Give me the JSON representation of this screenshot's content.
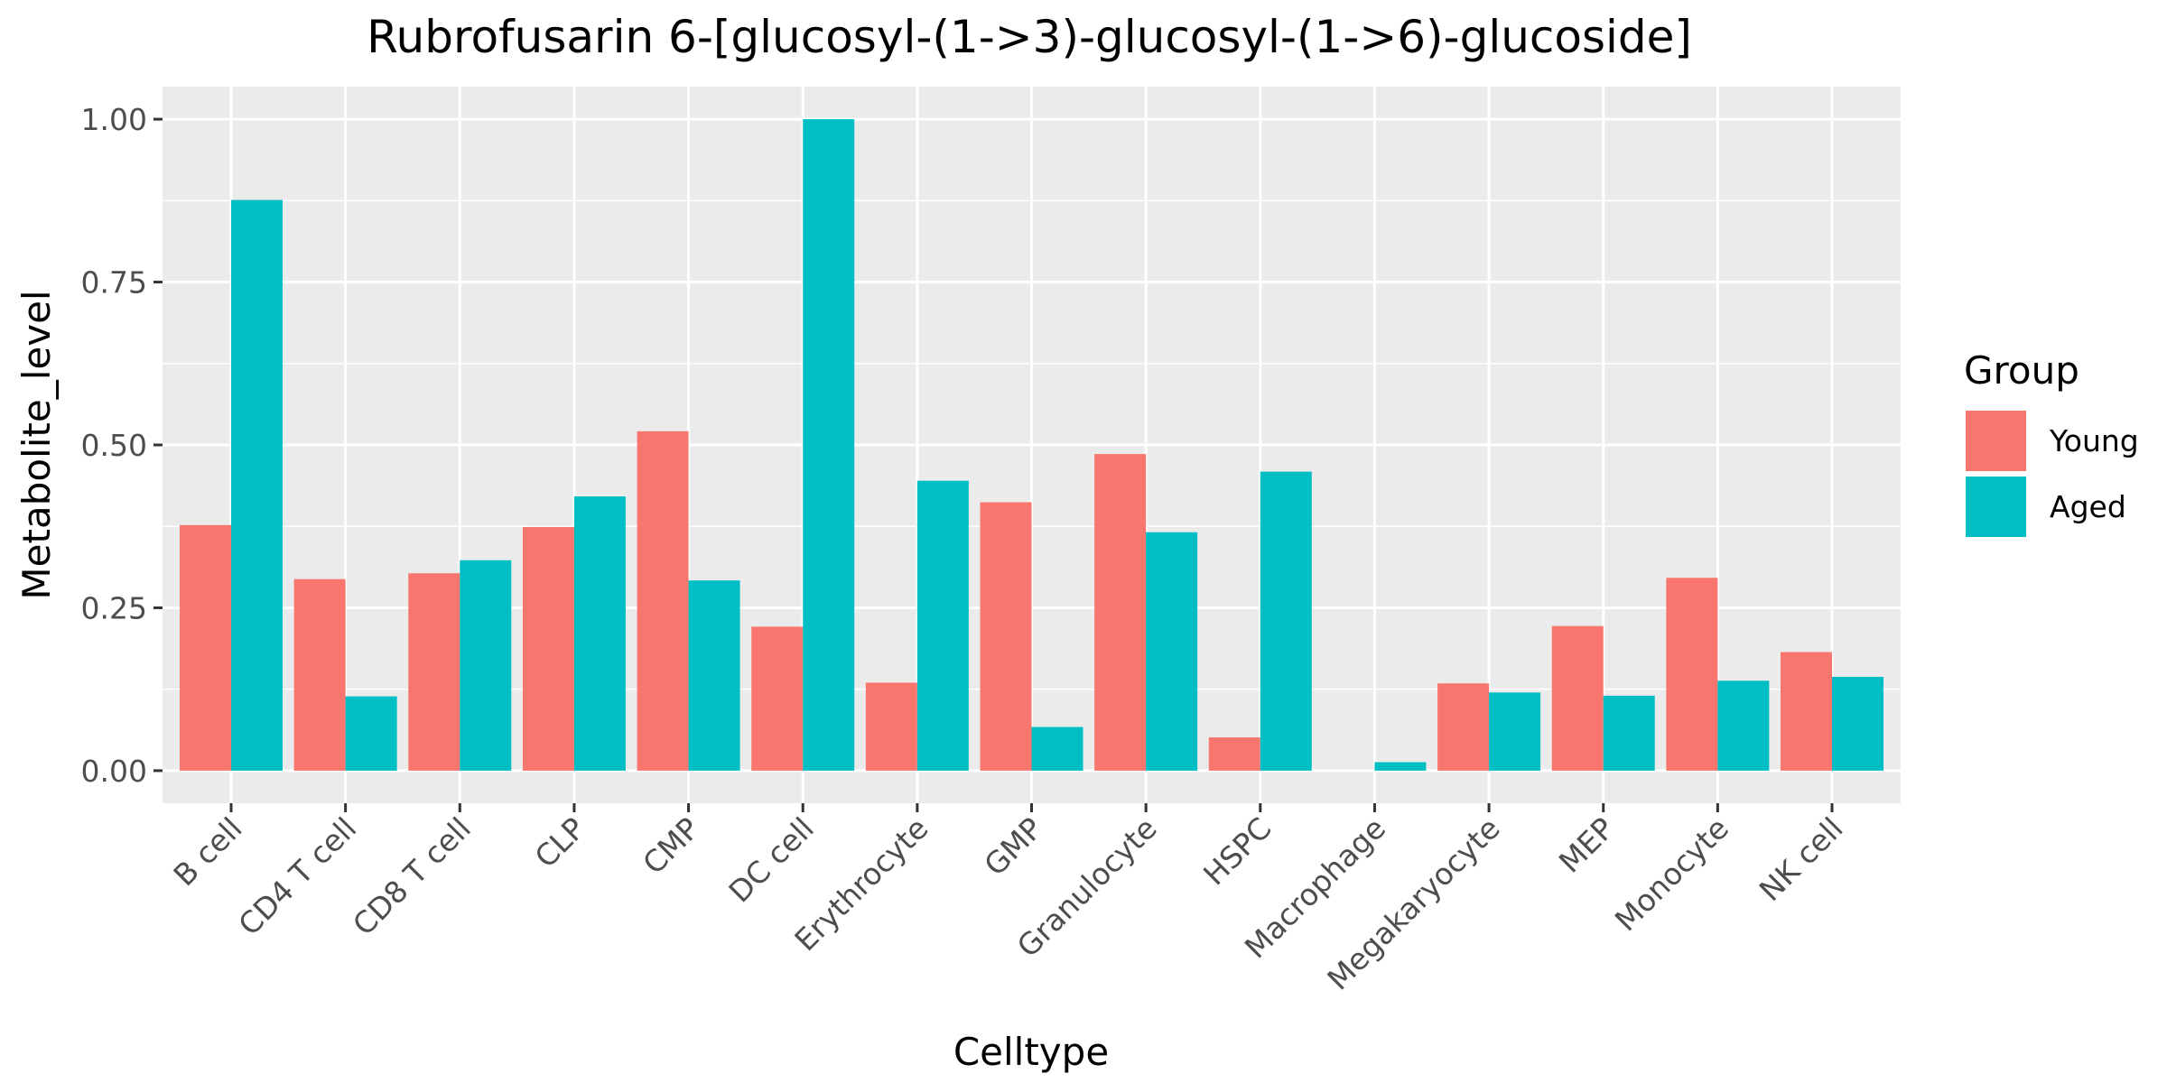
{
  "chart_data": {
    "type": "bar",
    "title": "Rubrofusarin 6-[glucosyl-(1->3)-glucosyl-(1->6)-glucoside]",
    "xlabel": "Celltype",
    "ylabel": "Metabolite_level",
    "ylim": [
      -0.05,
      1.05
    ],
    "yticks": [
      "0.00",
      "0.25",
      "0.50",
      "0.75",
      "1.00"
    ],
    "grid": true,
    "legend_title": "Group",
    "legend_position": "right",
    "categories": [
      "B cell",
      "CD4 T cell",
      "CD8 T cell",
      "CLP",
      "CMP",
      "DC cell",
      "Erythrocyte",
      "GMP",
      "Granulocyte",
      "HSPC",
      "Macrophage",
      "Megakaryocyte",
      "MEP",
      "Monocyte",
      "NK cell"
    ],
    "series": [
      {
        "name": "Young",
        "color": "#F8766D",
        "values": [
          0.377,
          0.294,
          0.303,
          0.374,
          0.521,
          0.221,
          0.135,
          0.412,
          0.486,
          0.051,
          0.0,
          0.134,
          0.222,
          0.296,
          0.182
        ]
      },
      {
        "name": "Aged",
        "color": "#00BFC4",
        "values": [
          0.876,
          0.114,
          0.323,
          0.421,
          0.292,
          1.0,
          0.445,
          0.067,
          0.366,
          0.459,
          0.013,
          0.12,
          0.115,
          0.138,
          0.144
        ]
      }
    ]
  }
}
